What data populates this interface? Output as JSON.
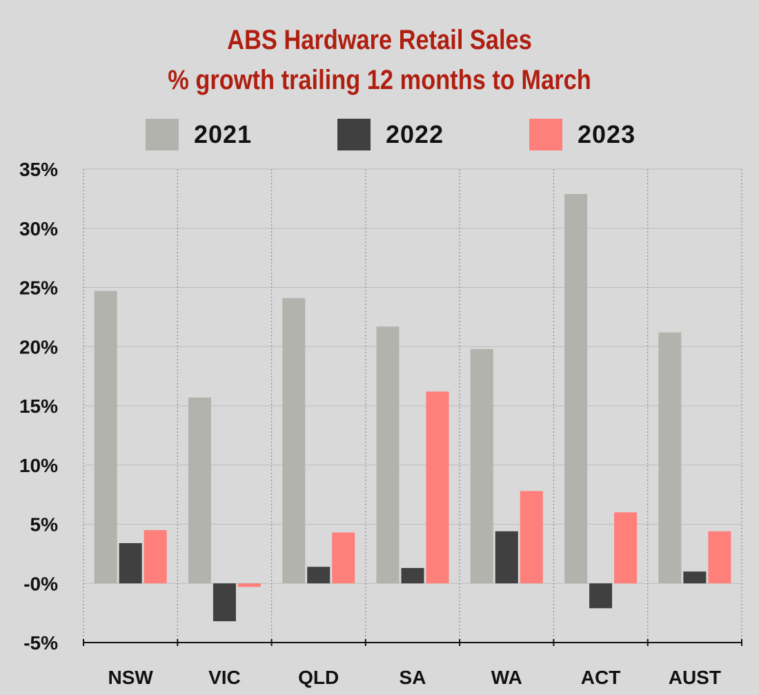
{
  "chart_data": {
    "type": "bar",
    "title": "ABS Hardware Retail Sales",
    "subtitle": "% growth trailing 12 months to March",
    "categories": [
      "NSW",
      "VIC",
      "QLD",
      "SA",
      "WA",
      "ACT",
      "AUST"
    ],
    "series": [
      {
        "name": "2021",
        "color": "#b3b3ad",
        "values": [
          24.7,
          15.7,
          24.1,
          21.7,
          19.8,
          32.9,
          21.2
        ]
      },
      {
        "name": "2022",
        "color": "#404040",
        "values": [
          3.4,
          -3.2,
          1.4,
          1.3,
          4.4,
          -2.1,
          1.0
        ]
      },
      {
        "name": "2023",
        "color": "#ff7f7b",
        "values": [
          4.5,
          -0.3,
          4.3,
          16.2,
          7.8,
          6.0,
          4.4
        ]
      }
    ],
    "yticks": [
      {
        "value": 35,
        "label": "35%"
      },
      {
        "value": 30,
        "label": "30%"
      },
      {
        "value": 25,
        "label": "25%"
      },
      {
        "value": 20,
        "label": "20%"
      },
      {
        "value": 15,
        "label": "15%"
      },
      {
        "value": 10,
        "label": "10%"
      },
      {
        "value": 5,
        "label": "5%"
      },
      {
        "value": 0,
        "label": "-0%"
      },
      {
        "value": -5,
        "label": "-5%"
      }
    ],
    "ylim": [
      -5,
      35
    ],
    "xlabel": "",
    "ylabel": "",
    "legend_position": "top",
    "grid": true
  },
  "colors": {
    "title": "#b01e10",
    "background": "#d9d9d9",
    "gridline": "#bcbcbc"
  }
}
